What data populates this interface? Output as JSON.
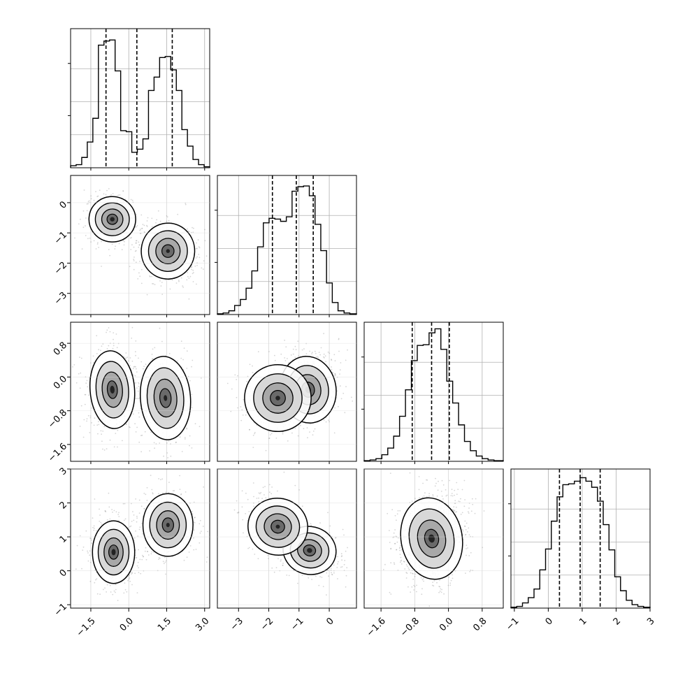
{
  "chart_data": {
    "type": "corner",
    "grid": true,
    "param_ranges": [
      [
        -2.3,
        3.2
      ],
      [
        -3.7,
        0.9
      ],
      [
        -2.0,
        1.3
      ],
      [
        -1.1,
        3.0
      ]
    ],
    "x_tick_labels": [
      [
        "-1.5",
        "0.0",
        "1.5",
        "3.0"
      ],
      [
        "-3",
        "-2",
        "-1",
        "0"
      ],
      [
        "-1.6",
        "-0.8",
        "0.0",
        "0.8"
      ],
      [
        "-1",
        "0",
        "1",
        "2",
        "3"
      ]
    ],
    "y_tick_labels": {
      "row1": [
        "0",
        "-1",
        "-2",
        "-3"
      ],
      "row2": [
        "0.8",
        "0.0",
        "-0.8",
        "-1.6"
      ],
      "row3": [
        "3",
        "2",
        "1",
        "0",
        "-1"
      ]
    },
    "quantiles": [
      [
        -0.9,
        0.32,
        1.72
      ],
      [
        -1.88,
        -1.09,
        -0.53
      ],
      [
        -0.86,
        -0.4,
        0.02
      ],
      [
        0.33,
        0.94,
        1.53
      ]
    ],
    "histograms": [
      {
        "param": 0,
        "edges": [
          -2.3,
          -2.08,
          -1.86,
          -1.64,
          -1.42,
          -1.2,
          -0.98,
          -0.76,
          -0.54,
          -0.32,
          -0.1,
          0.12,
          0.34,
          0.56,
          0.78,
          1.0,
          1.22,
          1.44,
          1.66,
          1.88,
          2.1,
          2.32,
          2.54,
          2.76,
          2.98,
          3.2
        ],
        "counts": [
          2,
          3,
          10,
          25,
          48,
          119,
          123,
          124,
          94,
          36,
          35,
          15,
          18,
          28,
          75,
          88,
          107,
          108,
          95,
          75,
          37,
          21,
          8,
          3,
          1
        ],
        "ylim": [
          0,
          135
        ]
      },
      {
        "param": 1,
        "edges": [
          -3.7,
          -3.51,
          -3.32,
          -3.13,
          -2.94,
          -2.75,
          -2.56,
          -2.37,
          -2.18,
          -1.99,
          -1.8,
          -1.61,
          -1.42,
          -1.23,
          -1.04,
          -0.85,
          -0.66,
          -0.47,
          -0.28,
          -0.09,
          0.1,
          0.29,
          0.49,
          0.68,
          0.9
        ],
        "counts": [
          1,
          2,
          5,
          12,
          20,
          35,
          58,
          90,
          122,
          128,
          127,
          124,
          130,
          164,
          170,
          171,
          158,
          120,
          85,
          42,
          16,
          5,
          2,
          1
        ],
        "ylim": [
          0,
          185
        ]
      },
      {
        "param": 2,
        "edges": [
          -2.0,
          -1.86,
          -1.72,
          -1.58,
          -1.44,
          -1.3,
          -1.16,
          -1.02,
          -0.88,
          -0.74,
          -0.6,
          -0.46,
          -0.32,
          -0.18,
          -0.04,
          0.1,
          0.24,
          0.38,
          0.52,
          0.66,
          0.8,
          0.94,
          1.08,
          1.22,
          1.3
        ],
        "counts": [
          1,
          2,
          4,
          10,
          20,
          38,
          68,
          108,
          152,
          175,
          176,
          194,
          200,
          169,
          121,
          88,
          55,
          30,
          16,
          8,
          4,
          2,
          1,
          1
        ],
        "ylim": [
          0,
          210
        ]
      },
      {
        "param": 3,
        "edges": [
          -1.1,
          -0.93,
          -0.76,
          -0.59,
          -0.42,
          -0.25,
          -0.08,
          0.09,
          0.26,
          0.43,
          0.6,
          0.77,
          0.94,
          1.11,
          1.28,
          1.45,
          1.62,
          1.79,
          1.96,
          2.13,
          2.3,
          2.47,
          2.64,
          2.81,
          3.0
        ],
        "counts": [
          1,
          2,
          6,
          12,
          22,
          44,
          68,
          100,
          128,
          142,
          143,
          146,
          150,
          146,
          139,
          123,
          96,
          67,
          36,
          20,
          9,
          4,
          2,
          1
        ],
        "ylim": [
          0,
          160
        ]
      }
    ],
    "pairs": [
      {
        "xi": 0,
        "yi": 1,
        "peaks": [
          {
            "x": -0.65,
            "y": -0.55,
            "sx": 0.42,
            "sy": 0.34,
            "r": -0.1,
            "w": 1.0
          },
          {
            "x": 1.55,
            "y": -1.6,
            "sx": 0.48,
            "sy": 0.42,
            "r": -0.05,
            "w": 0.9
          }
        ]
      },
      {
        "xi": 0,
        "yi": 2,
        "peaks": [
          {
            "x": -0.65,
            "y": -0.3,
            "sx": 0.4,
            "sy": 0.42,
            "r": 0.05,
            "w": 1.0
          },
          {
            "x": 1.45,
            "y": -0.5,
            "sx": 0.45,
            "sy": 0.45,
            "r": 0.05,
            "w": 0.85
          }
        ]
      },
      {
        "xi": 0,
        "yi": 3,
        "peaks": [
          {
            "x": -0.6,
            "y": 0.55,
            "sx": 0.38,
            "sy": 0.42,
            "r": 0.0,
            "w": 1.0
          },
          {
            "x": 1.55,
            "y": 1.35,
            "sx": 0.45,
            "sy": 0.42,
            "r": 0.0,
            "w": 0.85
          }
        ]
      },
      {
        "xi": 1,
        "yi": 2,
        "peaks": [
          {
            "x": -0.7,
            "y": -0.3,
            "sx": 0.42,
            "sy": 0.36,
            "r": 0.15,
            "w": 1.0
          },
          {
            "x": -1.7,
            "y": -0.5,
            "sx": 0.5,
            "sy": 0.36,
            "r": 0.1,
            "w": 0.85
          }
        ]
      },
      {
        "xi": 1,
        "yi": 3,
        "peaks": [
          {
            "x": -0.65,
            "y": 0.6,
            "sx": 0.4,
            "sy": 0.32,
            "r": -0.3,
            "w": 1.0
          },
          {
            "x": -1.7,
            "y": 1.3,
            "sx": 0.45,
            "sy": 0.38,
            "r": -0.25,
            "w": 0.85
          }
        ]
      },
      {
        "xi": 2,
        "yi": 3,
        "peaks": [
          {
            "x": -0.4,
            "y": 0.95,
            "sx": 0.33,
            "sy": 0.55,
            "r": 0.15,
            "w": 1.0
          }
        ]
      }
    ]
  }
}
